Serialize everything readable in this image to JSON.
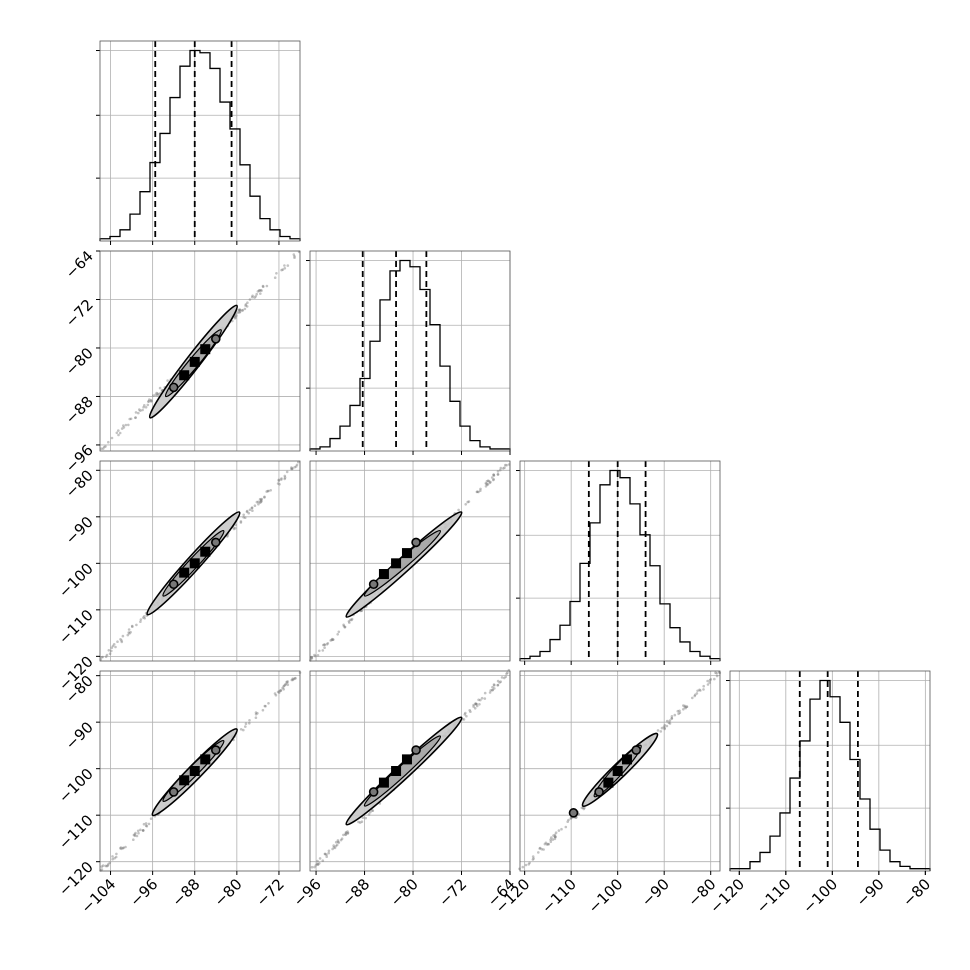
{
  "chart_data": {
    "type": "corner",
    "grid": true,
    "colors": {
      "line": "#000000",
      "grid": "#b0b0b0",
      "points": "#7a7a7a",
      "fill_inner": "#000000",
      "fill_outer": "#c8c8c8"
    },
    "parameters": [
      {
        "index": 0,
        "range": [
          -106,
          -68
        ],
        "ticks": [
          -104,
          -96,
          -88,
          -80,
          -72
        ],
        "tick_labels": [
          "−104",
          "−96",
          "−88",
          "−80",
          "−72"
        ],
        "quantiles": [
          -95.5,
          -88,
          -81
        ]
      },
      {
        "index": 1,
        "range": [
          -97,
          -64
        ],
        "ticks": [
          -96,
          -88,
          -80,
          -72,
          -64
        ],
        "tick_labels": [
          "−96",
          "−88",
          "−80",
          "−72",
          "−64"
        ],
        "quantiles": [
          -88.3,
          -82.8,
          -77.8
        ]
      },
      {
        "index": 2,
        "range": [
          -121,
          -78
        ],
        "ticks": [
          -120,
          -110,
          -100,
          -90,
          -80
        ],
        "tick_labels": [
          "−120",
          "−110",
          "−100",
          "−90",
          "−80"
        ],
        "quantiles": [
          -106.2,
          -100,
          -94
        ]
      },
      {
        "index": 3,
        "range": [
          -122,
          -79
        ],
        "ticks": [
          -120,
          -110,
          -100,
          -90,
          -80
        ],
        "tick_labels": [
          "−120",
          "−110",
          "−100",
          "−90",
          "−80"
        ],
        "quantiles": [
          -107,
          -101,
          -94.5
        ]
      }
    ],
    "histograms": [
      {
        "param": 0,
        "bin_edges": [
          -106,
          -104.1,
          -102.2,
          -100.3,
          -98.4,
          -96.5,
          -94.6,
          -92.7,
          -90.8,
          -88.9,
          -87,
          -85.1,
          -83.2,
          -81.3,
          -79.4,
          -77.5,
          -75.6,
          -73.7,
          -71.8,
          -69.9,
          -68
        ],
        "counts": [
          1,
          2,
          5,
          12,
          22,
          35,
          48,
          64,
          78,
          85,
          84,
          77,
          62,
          50,
          34,
          20,
          10,
          5,
          2,
          1
        ]
      },
      {
        "param": 1,
        "bin_edges": [
          -97,
          -95.35,
          -93.7,
          -92.05,
          -90.4,
          -88.75,
          -87.1,
          -85.45,
          -83.8,
          -82.15,
          -80.5,
          -78.85,
          -77.2,
          -75.55,
          -73.9,
          -72.25,
          -70.6,
          -68.95,
          -67.3,
          -65.65,
          -64
        ],
        "counts": [
          1,
          2,
          6,
          12,
          22,
          35,
          53,
          73,
          87,
          92,
          89,
          78,
          61,
          41,
          24,
          12,
          5,
          2,
          1,
          1
        ]
      },
      {
        "param": 2,
        "bin_edges": [
          -121,
          -118.85,
          -116.7,
          -114.55,
          -112.4,
          -110.25,
          -108.1,
          -105.95,
          -103.8,
          -101.65,
          -99.5,
          -97.35,
          -95.2,
          -93.05,
          -90.9,
          -88.75,
          -86.6,
          -84.45,
          -82.3,
          -80.15,
          -78
        ],
        "counts": [
          1,
          2,
          4,
          9,
          15,
          25,
          41,
          58,
          74,
          80,
          77,
          66,
          53,
          40,
          24,
          14,
          8,
          4,
          2,
          1
        ]
      },
      {
        "param": 3,
        "bin_edges": [
          -122,
          -119.85,
          -117.7,
          -115.55,
          -113.4,
          -111.25,
          -109.1,
          -106.95,
          -104.8,
          -102.65,
          -100.5,
          -98.35,
          -96.2,
          -94.05,
          -91.9,
          -89.75,
          -87.6,
          -85.45,
          -83.3,
          -81.15,
          -79
        ],
        "counts": [
          1,
          1,
          4,
          8,
          15,
          25,
          40,
          56,
          74,
          82,
          75,
          64,
          48,
          31,
          18,
          9,
          4,
          2,
          1,
          1
        ]
      }
    ],
    "scatter_pairs": [
      {
        "x_param": 0,
        "y_param": 1,
        "x_extent": [
          -106,
          -68
        ],
        "y_extent": [
          -97,
          -64
        ],
        "contour_x": [
          -96.5,
          -80
        ],
        "contour_y": [
          -91.5,
          -73
        ],
        "inner_x": [
          -93.5,
          -83
        ],
        "inner_y": [
          -88,
          -77
        ],
        "circles": [
          [
            -92,
            -86.5
          ],
          [
            -84,
            -78.5
          ]
        ],
        "blocks": [
          [
            -90,
            -84.5
          ],
          [
            -88,
            -82.3
          ],
          [
            -86,
            -80.2
          ]
        ]
      },
      {
        "x_param": 0,
        "y_param": 2,
        "x_extent": [
          -106,
          -68
        ],
        "y_extent": [
          -121,
          -78
        ],
        "contour_x": [
          -97,
          -79.5
        ],
        "contour_y": [
          -111,
          -89
        ],
        "inner_x": [
          -94,
          -82.5
        ],
        "inner_y": [
          -107,
          -93
        ],
        "circles": [
          [
            -92,
            -104.5
          ],
          [
            -84,
            -95.5
          ]
        ],
        "blocks": [
          [
            -90,
            -102
          ],
          [
            -88,
            -100
          ],
          [
            -86,
            -97.5
          ]
        ]
      },
      {
        "x_param": 1,
        "y_param": 2,
        "x_extent": [
          -97,
          -64
        ],
        "y_extent": [
          -121,
          -78
        ],
        "contour_x": [
          -91,
          -72
        ],
        "contour_y": [
          -111.5,
          -89
        ],
        "inner_x": [
          -88,
          -75.5
        ],
        "inner_y": [
          -107,
          -93
        ],
        "circles": [
          [
            -86.5,
            -104.5
          ],
          [
            -79.5,
            -95.5
          ]
        ],
        "blocks": [
          [
            -84.8,
            -102.3
          ],
          [
            -82.8,
            -100
          ],
          [
            -81,
            -97.8
          ]
        ]
      },
      {
        "x_param": 0,
        "y_param": 3,
        "x_extent": [
          -106,
          -68
        ],
        "y_extent": [
          -122,
          -79
        ],
        "contour_x": [
          -96,
          -80
        ],
        "contour_y": [
          -110,
          -91.5
        ],
        "inner_x": [
          -94,
          -82.5
        ],
        "inner_y": [
          -107,
          -94
        ],
        "circles": [
          [
            -92,
            -105
          ],
          [
            -84,
            -96
          ]
        ],
        "blocks": [
          [
            -90,
            -102.5
          ],
          [
            -88,
            -100.5
          ],
          [
            -86,
            -98
          ]
        ]
      },
      {
        "x_param": 1,
        "y_param": 3,
        "x_extent": [
          -97,
          -64
        ],
        "y_extent": [
          -122,
          -79
        ],
        "contour_x": [
          -91,
          -72
        ],
        "contour_y": [
          -112,
          -89
        ],
        "inner_x": [
          -88,
          -75.5
        ],
        "inner_y": [
          -108,
          -93
        ],
        "circles": [
          [
            -86.5,
            -105
          ],
          [
            -79.5,
            -96
          ]
        ],
        "blocks": [
          [
            -84.8,
            -103
          ],
          [
            -82.8,
            -100.5
          ],
          [
            -81,
            -98
          ]
        ]
      },
      {
        "x_param": 2,
        "y_param": 3,
        "x_extent": [
          -121,
          -78
        ],
        "y_extent": [
          -122,
          -79
        ],
        "contour_x": [
          -107.5,
          -91.5
        ],
        "contour_y": [
          -108,
          -92.5
        ],
        "inner_x": [
          -105,
          -95
        ],
        "inner_y": [
          -106,
          -95
        ],
        "circles": [
          [
            -109.5,
            -109.5
          ],
          [
            -104,
            -105
          ],
          [
            -96,
            -96
          ]
        ],
        "blocks": [
          [
            -102,
            -103
          ],
          [
            -100,
            -100.5
          ],
          [
            -98,
            -98
          ]
        ]
      }
    ]
  }
}
